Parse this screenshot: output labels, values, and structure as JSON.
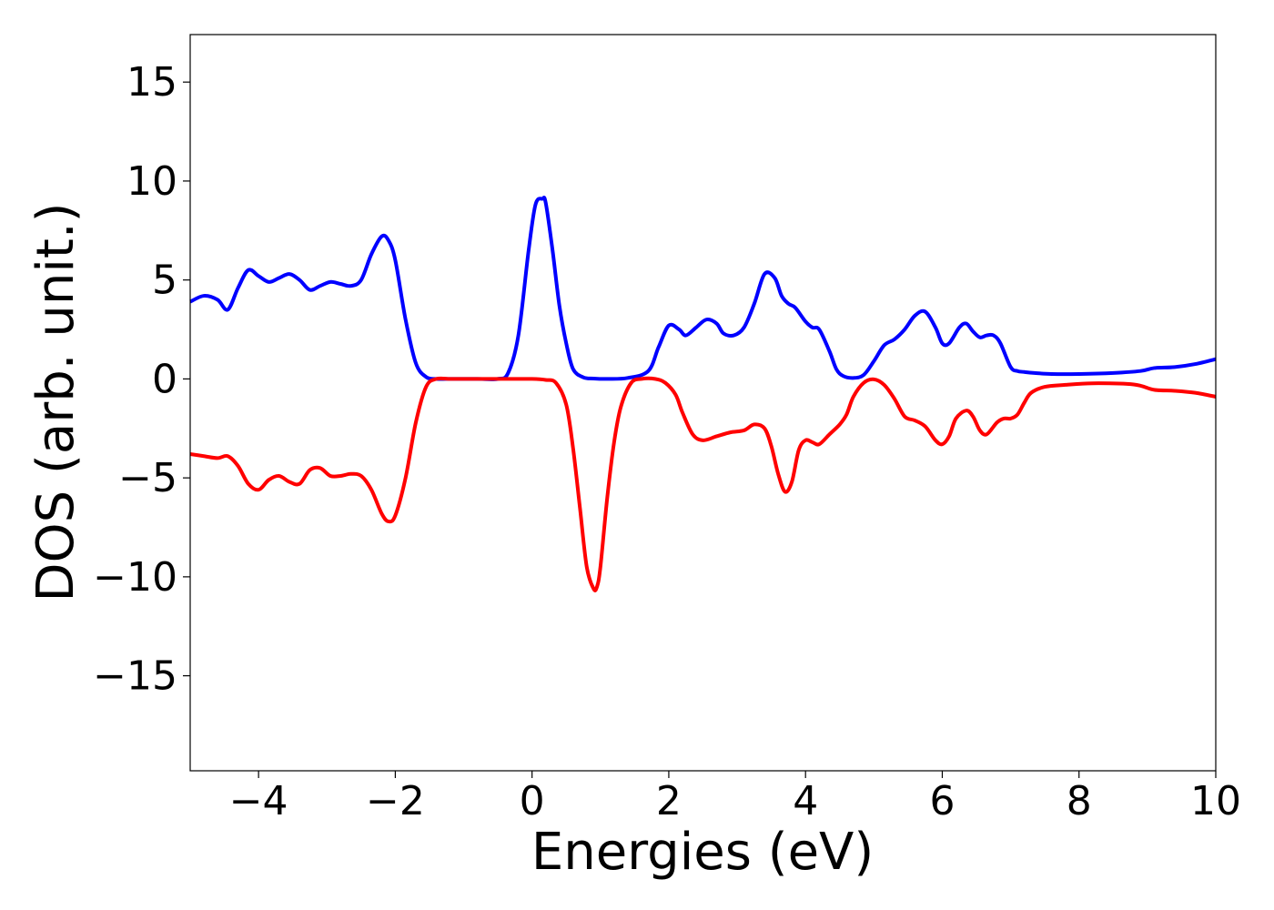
{
  "chart_data": {
    "type": "line",
    "title": "",
    "xlabel": "Energies (eV)",
    "ylabel": "DOS (arb. unit.)",
    "xlim": [
      -5,
      10
    ],
    "ylim": [
      -19.8,
      17.4
    ],
    "xticks": [
      -4,
      -2,
      0,
      2,
      4,
      6,
      8,
      10
    ],
    "xtick_labels": [
      "−4",
      "−2",
      "0",
      "2",
      "4",
      "6",
      "8",
      "10"
    ],
    "yticks": [
      15,
      10,
      5,
      0,
      -5,
      -10,
      -15
    ],
    "ytick_labels": [
      "15",
      "10",
      "5",
      "0",
      "−5",
      "−10",
      "−15"
    ],
    "grid": false,
    "legend": "none",
    "series": [
      {
        "color": "#0000ff",
        "x": [
          -5.0,
          -4.8,
          -4.6,
          -4.45,
          -4.3,
          -4.15,
          -4.0,
          -3.85,
          -3.7,
          -3.55,
          -3.4,
          -3.25,
          -3.1,
          -2.95,
          -2.8,
          -2.65,
          -2.5,
          -2.35,
          -2.2,
          -2.1,
          -2.0,
          -1.85,
          -1.7,
          -1.55,
          -1.4,
          -1.25,
          -1.1,
          -0.8,
          -0.5,
          -0.35,
          -0.2,
          -0.05,
          0.05,
          0.15,
          0.2,
          0.3,
          0.4,
          0.5,
          0.6,
          0.75,
          0.9,
          1.1,
          1.4,
          1.7,
          1.85,
          2.0,
          2.15,
          2.25,
          2.4,
          2.55,
          2.7,
          2.8,
          2.95,
          3.1,
          3.25,
          3.4,
          3.55,
          3.65,
          3.75,
          3.85,
          4.0,
          4.1,
          4.2,
          4.35,
          4.45,
          4.55,
          4.7,
          4.85,
          5.0,
          5.15,
          5.3,
          5.45,
          5.6,
          5.75,
          5.9,
          6.0,
          6.1,
          6.25,
          6.35,
          6.45,
          6.55,
          6.65,
          6.75,
          6.85,
          7.0,
          7.1,
          7.2,
          7.35,
          7.6,
          8.0,
          8.5,
          8.9,
          9.1,
          9.4,
          9.7,
          10.0
        ],
        "y": [
          3.9,
          4.2,
          4.0,
          3.5,
          4.6,
          5.5,
          5.2,
          4.9,
          5.1,
          5.3,
          5.0,
          4.5,
          4.7,
          4.9,
          4.8,
          4.7,
          5.0,
          6.3,
          7.2,
          7.0,
          6.0,
          3.0,
          0.8,
          0.1,
          0.0,
          0.0,
          0.0,
          0.0,
          0.0,
          0.3,
          2.2,
          6.5,
          8.8,
          9.1,
          8.9,
          6.5,
          3.7,
          1.8,
          0.5,
          0.08,
          0.02,
          0.0,
          0.05,
          0.4,
          1.6,
          2.7,
          2.5,
          2.2,
          2.6,
          3.0,
          2.8,
          2.3,
          2.2,
          2.6,
          3.8,
          5.3,
          5.1,
          4.2,
          3.8,
          3.6,
          2.9,
          2.6,
          2.5,
          1.4,
          0.5,
          0.15,
          0.05,
          0.2,
          0.9,
          1.7,
          2.0,
          2.5,
          3.2,
          3.4,
          2.6,
          1.8,
          1.8,
          2.6,
          2.8,
          2.4,
          2.1,
          2.2,
          2.2,
          1.8,
          0.6,
          0.4,
          0.35,
          0.3,
          0.25,
          0.25,
          0.3,
          0.4,
          0.55,
          0.6,
          0.75,
          1.0
        ]
      },
      {
        "color": "#ff0000",
        "x": [
          -5.0,
          -4.8,
          -4.6,
          -4.45,
          -4.3,
          -4.15,
          -4.0,
          -3.85,
          -3.7,
          -3.55,
          -3.4,
          -3.25,
          -3.1,
          -2.95,
          -2.8,
          -2.65,
          -2.5,
          -2.35,
          -2.2,
          -2.1,
          -2.0,
          -1.85,
          -1.7,
          -1.55,
          -1.4,
          -1.2,
          -1.0,
          -0.5,
          0.0,
          0.2,
          0.35,
          0.5,
          0.6,
          0.7,
          0.8,
          0.9,
          0.95,
          1.0,
          1.1,
          1.2,
          1.3,
          1.45,
          1.6,
          1.8,
          1.95,
          2.1,
          2.2,
          2.35,
          2.5,
          2.7,
          2.9,
          3.1,
          3.25,
          3.4,
          3.5,
          3.6,
          3.7,
          3.8,
          3.9,
          4.0,
          4.1,
          4.2,
          4.35,
          4.5,
          4.6,
          4.7,
          4.85,
          5.0,
          5.15,
          5.3,
          5.45,
          5.6,
          5.75,
          5.9,
          6.0,
          6.1,
          6.2,
          6.35,
          6.45,
          6.55,
          6.65,
          6.8,
          6.9,
          7.0,
          7.1,
          7.2,
          7.3,
          7.5,
          7.8,
          8.2,
          8.8,
          9.1,
          9.4,
          9.7,
          10.0
        ],
        "y": [
          -3.8,
          -3.9,
          -4.0,
          -3.9,
          -4.4,
          -5.3,
          -5.6,
          -5.1,
          -4.9,
          -5.2,
          -5.3,
          -4.6,
          -4.5,
          -4.9,
          -4.9,
          -4.8,
          -4.9,
          -5.6,
          -6.8,
          -7.2,
          -6.9,
          -5.0,
          -2.2,
          -0.4,
          0.0,
          0.0,
          0.0,
          0.0,
          0.0,
          -0.05,
          -0.2,
          -1.3,
          -3.5,
          -6.5,
          -9.5,
          -10.6,
          -10.5,
          -9.5,
          -6.0,
          -3.2,
          -1.4,
          -0.2,
          0.0,
          0.0,
          -0.2,
          -0.8,
          -1.7,
          -2.8,
          -3.1,
          -2.9,
          -2.7,
          -2.6,
          -2.3,
          -2.5,
          -3.4,
          -4.8,
          -5.7,
          -5.2,
          -3.6,
          -3.1,
          -3.2,
          -3.3,
          -2.8,
          -2.3,
          -1.8,
          -0.9,
          -0.2,
          -0.02,
          -0.3,
          -1.0,
          -1.9,
          -2.1,
          -2.4,
          -3.1,
          -3.3,
          -2.9,
          -2.0,
          -1.6,
          -1.9,
          -2.6,
          -2.8,
          -2.2,
          -2.0,
          -2.0,
          -1.8,
          -1.2,
          -0.7,
          -0.4,
          -0.3,
          -0.22,
          -0.28,
          -0.55,
          -0.6,
          -0.7,
          -0.9
        ]
      }
    ]
  }
}
